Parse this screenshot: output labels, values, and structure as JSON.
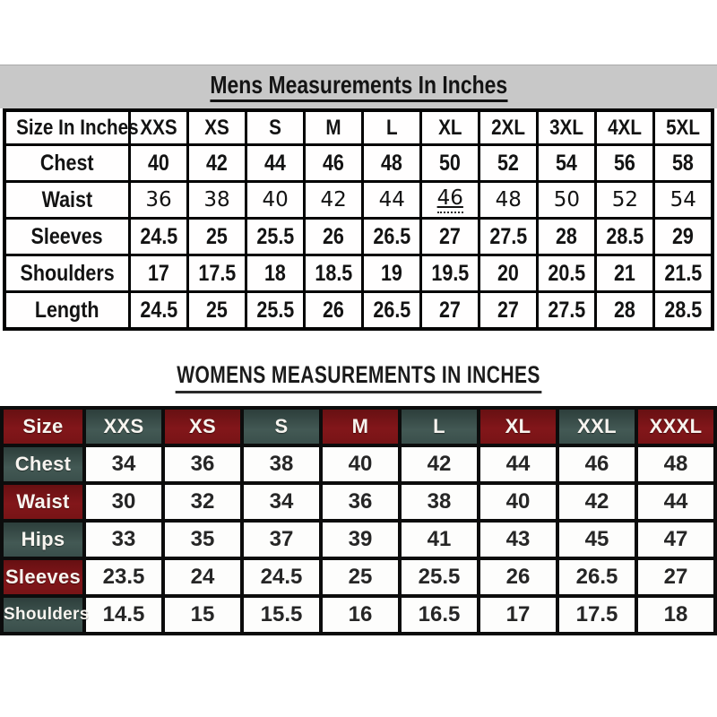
{
  "chart_data": [
    {
      "type": "table",
      "title": "Mens Measurements In Inches",
      "columns": [
        "Size In Inches",
        "XXS",
        "XS",
        "S",
        "M",
        "L",
        "XL",
        "2XL",
        "3XL",
        "4XL",
        "5XL"
      ],
      "rows": [
        {
          "label": "Chest",
          "values": [
            "40",
            "42",
            "44",
            "46",
            "48",
            "50",
            "52",
            "54",
            "56",
            "58"
          ]
        },
        {
          "label": "Waist",
          "values": [
            "36",
            "38",
            "40",
            "42",
            "44",
            "46",
            "48",
            "50",
            "52",
            "54"
          ],
          "font_variant": "wide"
        },
        {
          "label": "Sleeves",
          "values": [
            "24.5",
            "25",
            "25.5",
            "26",
            "26.5",
            "27",
            "27.5",
            "28",
            "28.5",
            "29"
          ]
        },
        {
          "label": "Shoulders",
          "values": [
            "17",
            "17.5",
            "18",
            "18.5",
            "19",
            "19.5",
            "20",
            "20.5",
            "21",
            "21.5"
          ]
        },
        {
          "label": "Length",
          "values": [
            "24.5",
            "25",
            "25.5",
            "26",
            "26.5",
            "27",
            "27",
            "27.5",
            "28",
            "28.5"
          ]
        }
      ],
      "annotations": [
        {
          "row": "Waist",
          "column": "XL",
          "mark": "underline-dotted"
        }
      ]
    },
    {
      "type": "table",
      "title": "WOMENS MEASUREMENTS IN INCHES",
      "columns": [
        "Size",
        "XXS",
        "XS",
        "S",
        "M",
        "L",
        "XL",
        "XXL",
        "XXXL"
      ],
      "rows": [
        {
          "label": "Chest",
          "values": [
            "34",
            "36",
            "38",
            "40",
            "42",
            "44",
            "46",
            "48"
          ]
        },
        {
          "label": "Waist",
          "values": [
            "30",
            "32",
            "34",
            "36",
            "38",
            "40",
            "42",
            "44"
          ]
        },
        {
          "label": "Hips",
          "values": [
            "33",
            "35",
            "37",
            "39",
            "41",
            "43",
            "45",
            "47"
          ]
        },
        {
          "label": "Sleeves",
          "values": [
            "23.5",
            "24",
            "24.5",
            "25",
            "25.5",
            "26",
            "26.5",
            "27"
          ]
        },
        {
          "label": "Shoulders",
          "values": [
            "14.5",
            "15",
            "15.5",
            "16",
            "16.5",
            "17",
            "17.5",
            "18"
          ]
        }
      ],
      "header_color_pattern": "checkerboard starting maroon at Size cell"
    }
  ],
  "style": {
    "mens_title_band": "#c8c8c8",
    "maroon": "#7c1416",
    "teal": "#3e544f",
    "grid_black": "#0c0c0c",
    "womens_value_text": "#262626",
    "womens_label_text": "#f7f4ef"
  }
}
